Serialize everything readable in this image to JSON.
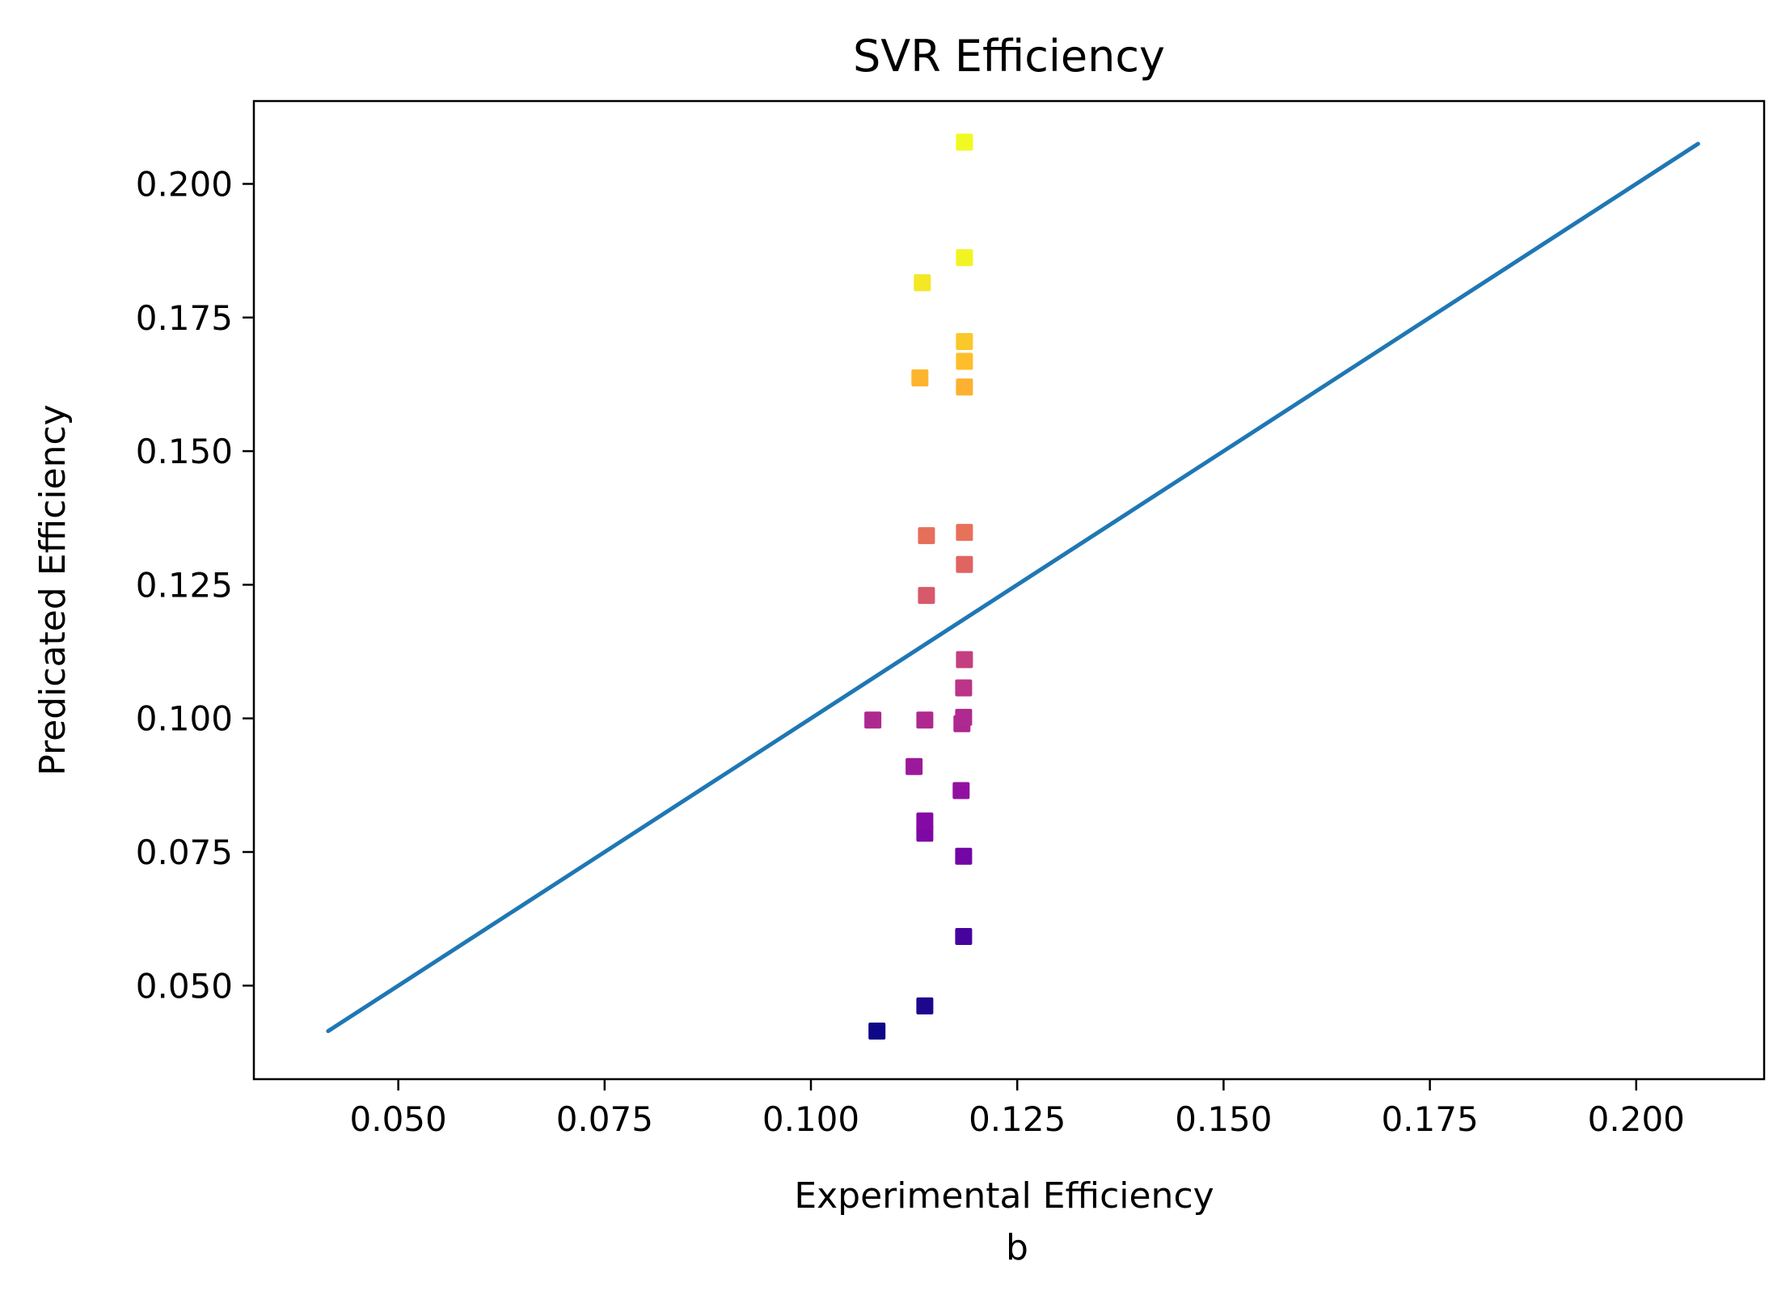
{
  "chart_data": {
    "type": "scatter",
    "title": "SVR Efficiency",
    "xlabel": "Experimental Efficiency",
    "sublabel": "b",
    "ylabel": "Predicated Efficiency",
    "xlim": [
      0.0325,
      0.2155
    ],
    "ylim": [
      0.0325,
      0.2155
    ],
    "xticks": [
      "0.050",
      "0.075",
      "0.100",
      "0.125",
      "0.150",
      "0.175",
      "0.200"
    ],
    "yticks": [
      "0.050",
      "0.075",
      "0.100",
      "0.125",
      "0.150",
      "0.175",
      "0.200"
    ],
    "grid": false,
    "colormap": "plasma",
    "line_color": "#1f77b4",
    "reference_line": {
      "x": [
        0.0415,
        0.2075
      ],
      "y": [
        0.0415,
        0.2075
      ]
    },
    "points": [
      {
        "x": 0.108,
        "y": 0.0415
      },
      {
        "x": 0.1138,
        "y": 0.0462
      },
      {
        "x": 0.1185,
        "y": 0.0592
      },
      {
        "x": 0.1185,
        "y": 0.0742
      },
      {
        "x": 0.1138,
        "y": 0.0785
      },
      {
        "x": 0.1138,
        "y": 0.0808
      },
      {
        "x": 0.1182,
        "y": 0.0865
      },
      {
        "x": 0.1125,
        "y": 0.091
      },
      {
        "x": 0.1183,
        "y": 0.099
      },
      {
        "x": 0.1075,
        "y": 0.0997
      },
      {
        "x": 0.1138,
        "y": 0.0997
      },
      {
        "x": 0.1185,
        "y": 0.1002
      },
      {
        "x": 0.1185,
        "y": 0.1057
      },
      {
        "x": 0.1186,
        "y": 0.111
      },
      {
        "x": 0.114,
        "y": 0.123
      },
      {
        "x": 0.1186,
        "y": 0.1288
      },
      {
        "x": 0.114,
        "y": 0.1342
      },
      {
        "x": 0.1186,
        "y": 0.1348
      },
      {
        "x": 0.1186,
        "y": 0.162
      },
      {
        "x": 0.1132,
        "y": 0.1637
      },
      {
        "x": 0.1186,
        "y": 0.1668
      },
      {
        "x": 0.1186,
        "y": 0.1705
      },
      {
        "x": 0.1135,
        "y": 0.1815
      },
      {
        "x": 0.1186,
        "y": 0.1862
      },
      {
        "x": 0.1186,
        "y": 0.2078
      }
    ]
  }
}
